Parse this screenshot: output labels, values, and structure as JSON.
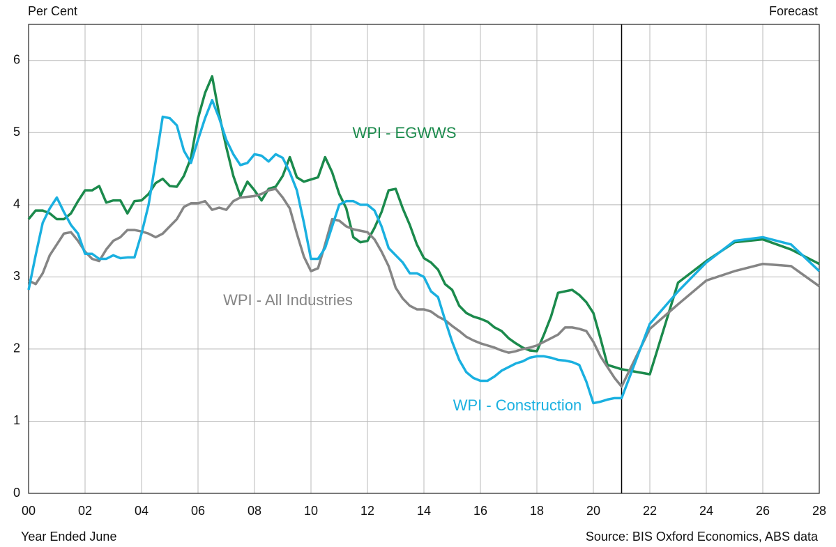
{
  "chart_data": {
    "type": "line",
    "y_axis_label": "Per Cent",
    "x_axis_label": "Year Ended June",
    "source": "Source: BIS Oxford Economics, ABS data",
    "forecast_label": "Forecast",
    "forecast_start": 2021,
    "x": [
      2000,
      2000.25,
      2000.5,
      2000.75,
      2001,
      2001.25,
      2001.5,
      2001.75,
      2002,
      2002.25,
      2002.5,
      2002.75,
      2003,
      2003.25,
      2003.5,
      2003.75,
      2004,
      2004.25,
      2004.5,
      2004.75,
      2005,
      2005.25,
      2005.5,
      2005.75,
      2006,
      2006.25,
      2006.5,
      2006.75,
      2007,
      2007.25,
      2007.5,
      2007.75,
      2008,
      2008.25,
      2008.5,
      2008.75,
      2009,
      2009.25,
      2009.5,
      2009.75,
      2010,
      2010.25,
      2010.5,
      2010.75,
      2011,
      2011.25,
      2011.5,
      2011.75,
      2012,
      2012.25,
      2012.5,
      2012.75,
      2013,
      2013.25,
      2013.5,
      2013.75,
      2014,
      2014.25,
      2014.5,
      2014.75,
      2015,
      2015.25,
      2015.5,
      2015.75,
      2016,
      2016.25,
      2016.5,
      2016.75,
      2017,
      2017.25,
      2017.5,
      2017.75,
      2018,
      2018.25,
      2018.5,
      2018.75,
      2019,
      2019.25,
      2019.5,
      2019.75,
      2020,
      2020.25,
      2020.5,
      2020.75,
      2021,
      2022,
      2023,
      2024,
      2025,
      2026,
      2027,
      2028
    ],
    "series": [
      {
        "name": "WPI - EGWWS",
        "color": "#1b8a4c",
        "values": [
          3.8,
          3.92,
          3.92,
          3.88,
          3.8,
          3.8,
          3.88,
          4.05,
          4.2,
          4.2,
          4.26,
          4.03,
          4.06,
          4.06,
          3.88,
          4.05,
          4.06,
          4.15,
          4.3,
          4.36,
          4.26,
          4.25,
          4.4,
          4.65,
          5.2,
          5.55,
          5.78,
          5.25,
          4.8,
          4.4,
          4.12,
          4.32,
          4.2,
          4.06,
          4.22,
          4.25,
          4.4,
          4.66,
          4.38,
          4.32,
          4.35,
          4.38,
          4.66,
          4.45,
          4.15,
          3.95,
          3.55,
          3.48,
          3.5,
          3.68,
          3.9,
          4.2,
          4.22,
          3.95,
          3.72,
          3.45,
          3.26,
          3.2,
          3.1,
          2.9,
          2.82,
          2.6,
          2.5,
          2.45,
          2.42,
          2.38,
          2.3,
          2.25,
          2.15,
          2.08,
          2.02,
          1.98,
          1.97,
          2.2,
          2.45,
          2.78,
          2.8,
          2.82,
          2.75,
          2.65,
          2.5,
          2.15,
          1.78,
          1.75,
          1.72,
          1.65,
          2.92,
          3.22,
          3.48,
          3.52,
          3.38,
          3.18
        ]
      },
      {
        "name": "WPI - All Industries",
        "color": "#858585",
        "values": [
          2.95,
          2.9,
          3.05,
          3.3,
          3.45,
          3.6,
          3.62,
          3.5,
          3.35,
          3.25,
          3.22,
          3.38,
          3.5,
          3.55,
          3.65,
          3.65,
          3.63,
          3.6,
          3.55,
          3.6,
          3.7,
          3.8,
          3.97,
          4.02,
          4.02,
          4.05,
          3.93,
          3.96,
          3.93,
          4.05,
          4.1,
          4.11,
          4.12,
          4.15,
          4.2,
          4.22,
          4.1,
          3.95,
          3.6,
          3.28,
          3.08,
          3.12,
          3.45,
          3.8,
          3.78,
          3.7,
          3.66,
          3.64,
          3.62,
          3.52,
          3.35,
          3.15,
          2.85,
          2.7,
          2.6,
          2.55,
          2.55,
          2.52,
          2.45,
          2.4,
          2.32,
          2.25,
          2.17,
          2.12,
          2.08,
          2.05,
          2.02,
          1.98,
          1.95,
          1.97,
          2.0,
          2.02,
          2.05,
          2.1,
          2.15,
          2.2,
          2.3,
          2.3,
          2.28,
          2.25,
          2.1,
          1.9,
          1.75,
          1.6,
          1.48,
          2.28,
          2.62,
          2.95,
          3.08,
          3.18,
          3.15,
          2.87
        ]
      },
      {
        "name": "WPI - Construction",
        "color": "#1ab0e0",
        "values": [
          2.82,
          3.3,
          3.75,
          3.95,
          4.1,
          3.9,
          3.72,
          3.6,
          3.32,
          3.32,
          3.25,
          3.25,
          3.3,
          3.26,
          3.27,
          3.27,
          3.6,
          4.0,
          4.6,
          5.22,
          5.2,
          5.1,
          4.75,
          4.58,
          4.9,
          5.2,
          5.45,
          5.2,
          4.9,
          4.7,
          4.55,
          4.58,
          4.7,
          4.68,
          4.6,
          4.7,
          4.65,
          4.45,
          4.2,
          3.75,
          3.25,
          3.25,
          3.4,
          3.7,
          4.0,
          4.05,
          4.05,
          4.0,
          4.0,
          3.92,
          3.7,
          3.4,
          3.3,
          3.2,
          3.05,
          3.05,
          3.0,
          2.8,
          2.72,
          2.4,
          2.1,
          1.85,
          1.68,
          1.6,
          1.56,
          1.56,
          1.62,
          1.7,
          1.75,
          1.8,
          1.83,
          1.88,
          1.9,
          1.9,
          1.88,
          1.85,
          1.84,
          1.82,
          1.78,
          1.55,
          1.25,
          1.27,
          1.3,
          1.32,
          1.32,
          2.35,
          2.8,
          3.2,
          3.5,
          3.55,
          3.45,
          3.08
        ]
      }
    ],
    "xlim": [
      2000,
      2028
    ],
    "xticks": [
      {
        "value": 2000,
        "label": "00"
      },
      {
        "value": 2002,
        "label": "02"
      },
      {
        "value": 2004,
        "label": "04"
      },
      {
        "value": 2006,
        "label": "06"
      },
      {
        "value": 2008,
        "label": "08"
      },
      {
        "value": 2010,
        "label": "10"
      },
      {
        "value": 2012,
        "label": "12"
      },
      {
        "value": 2014,
        "label": "14"
      },
      {
        "value": 2016,
        "label": "16"
      },
      {
        "value": 2018,
        "label": "18"
      },
      {
        "value": 2020,
        "label": "20"
      },
      {
        "value": 2022,
        "label": "22"
      },
      {
        "value": 2024,
        "label": "24"
      },
      {
        "value": 2026,
        "label": "26"
      },
      {
        "value": 2028,
        "label": "28"
      }
    ],
    "ylim": [
      0,
      6.5
    ],
    "yticks": [
      0,
      1,
      2,
      3,
      4,
      5,
      6
    ],
    "grid": true
  }
}
